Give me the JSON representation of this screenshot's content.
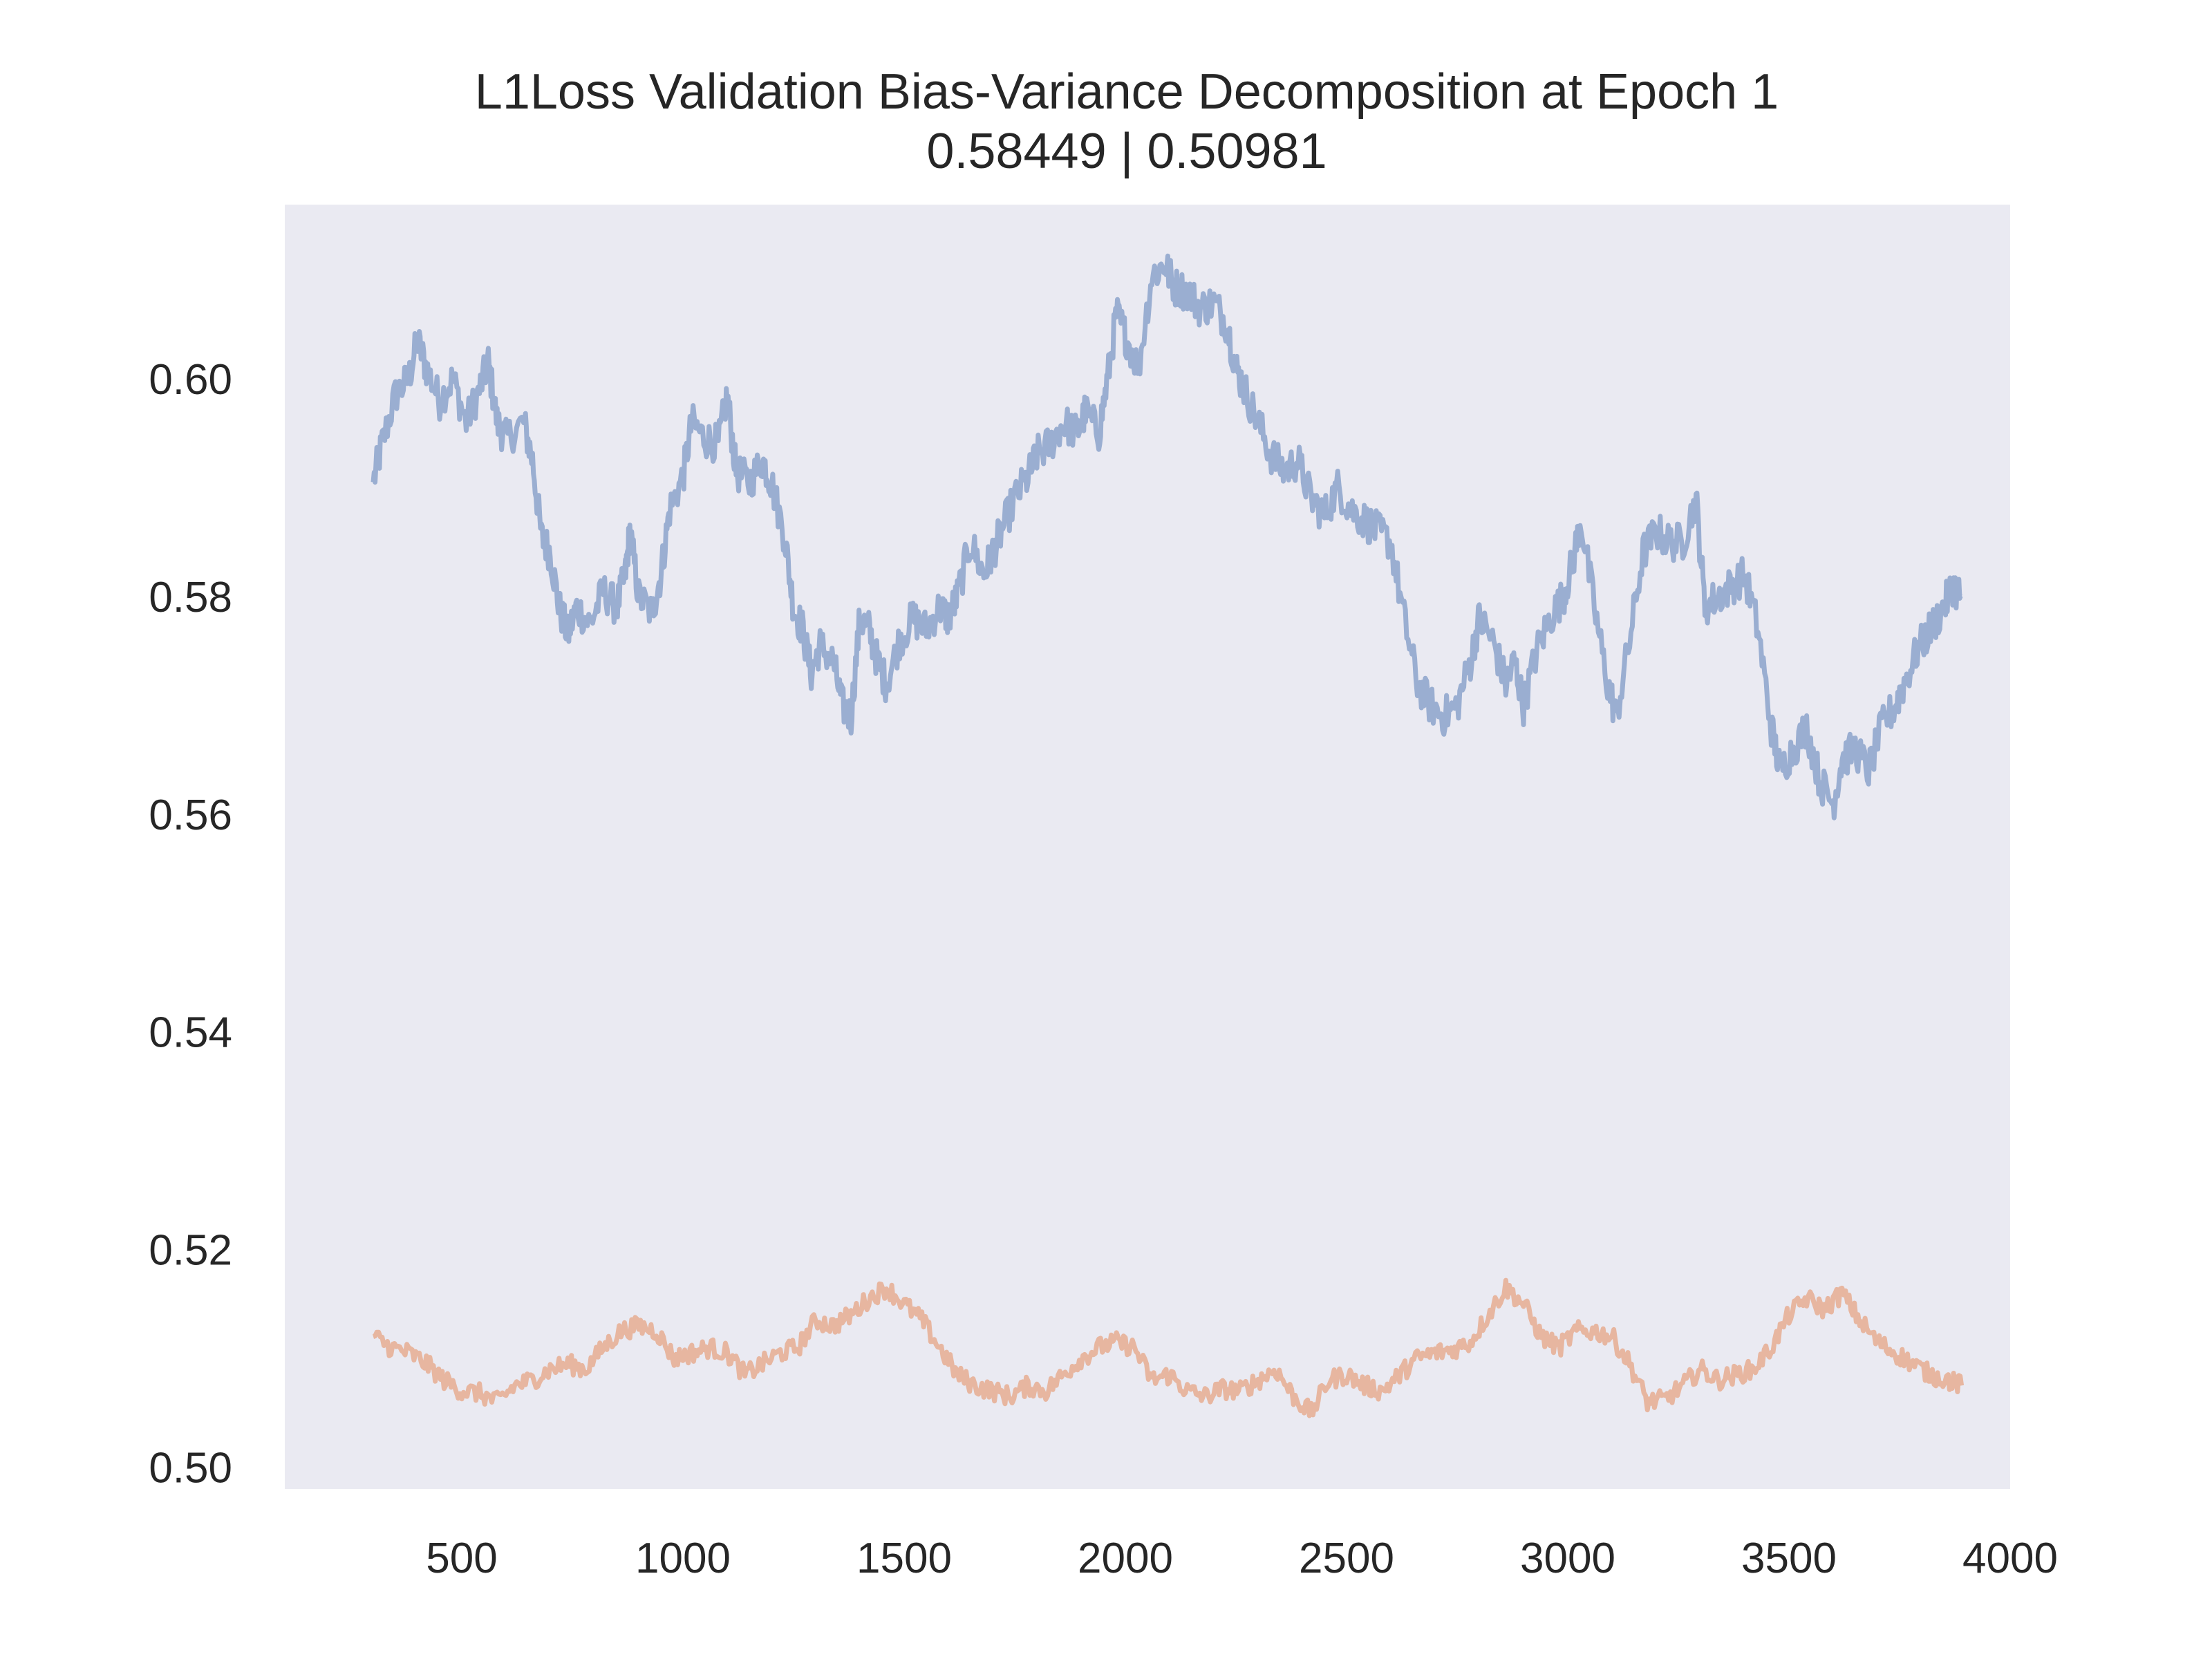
{
  "chart_data": {
    "type": "line",
    "title": "L1Loss Validation Bias-Variance Decomposition at Epoch 1",
    "subtitle": "0.58449 | 0.50981",
    "xlabel": "",
    "ylabel": "",
    "xlim": [
      100,
      4000
    ],
    "ylim": [
      0.498,
      0.616
    ],
    "x_ticks": [
      500,
      1000,
      1500,
      2000,
      2500,
      3000,
      3500,
      4000
    ],
    "x_tick_labels": [
      "500",
      "1000",
      "1500",
      "2000",
      "2500",
      "3000",
      "3500",
      "4000"
    ],
    "y_ticks": [
      0.5,
      0.52,
      0.54,
      0.56,
      0.58,
      0.6
    ],
    "y_tick_labels": [
      "0.50",
      "0.52",
      "0.54",
      "0.56",
      "0.58",
      "0.60"
    ],
    "grid": false,
    "legend": "none",
    "background_color": "#eaeaf2",
    "series": [
      {
        "color": "#9aaed1",
        "points": [
          [
            300,
            0.5905
          ],
          [
            320,
            0.594
          ],
          [
            350,
            0.5985
          ],
          [
            380,
            0.6
          ],
          [
            400,
            0.6035
          ],
          [
            420,
            0.601
          ],
          [
            450,
            0.598
          ],
          [
            480,
            0.6
          ],
          [
            510,
            0.596
          ],
          [
            540,
            0.599
          ],
          [
            560,
            0.6015
          ],
          [
            580,
            0.596
          ],
          [
            600,
            0.5945
          ],
          [
            640,
            0.596
          ],
          [
            660,
            0.5925
          ],
          [
            680,
            0.5855
          ],
          [
            700,
            0.584
          ],
          [
            720,
            0.579
          ],
          [
            740,
            0.5765
          ],
          [
            760,
            0.579
          ],
          [
            790,
            0.5775
          ],
          [
            820,
            0.5805
          ],
          [
            850,
            0.579
          ],
          [
            870,
            0.582
          ],
          [
            880,
            0.586
          ],
          [
            900,
            0.58
          ],
          [
            930,
            0.5785
          ],
          [
            950,
            0.582
          ],
          [
            970,
            0.588
          ],
          [
            1000,
            0.591
          ],
          [
            1020,
            0.596
          ],
          [
            1050,
            0.5945
          ],
          [
            1080,
            0.594
          ],
          [
            1100,
            0.5985
          ],
          [
            1120,
            0.5915
          ],
          [
            1150,
            0.5905
          ],
          [
            1180,
            0.5925
          ],
          [
            1200,
            0.5905
          ],
          [
            1230,
            0.5855
          ],
          [
            1250,
            0.579
          ],
          [
            1270,
            0.577
          ],
          [
            1290,
            0.573
          ],
          [
            1310,
            0.5755
          ],
          [
            1340,
            0.574
          ],
          [
            1360,
            0.57
          ],
          [
            1380,
            0.569
          ],
          [
            1400,
            0.578
          ],
          [
            1420,
            0.577
          ],
          [
            1440,
            0.574
          ],
          [
            1460,
            0.572
          ],
          [
            1490,
            0.576
          ],
          [
            1520,
            0.578
          ],
          [
            1550,
            0.577
          ],
          [
            1580,
            0.579
          ],
          [
            1600,
            0.578
          ],
          [
            1620,
            0.58
          ],
          [
            1650,
            0.585
          ],
          [
            1680,
            0.582
          ],
          [
            1700,
            0.584
          ],
          [
            1720,
            0.586
          ],
          [
            1750,
            0.589
          ],
          [
            1780,
            0.591
          ],
          [
            1800,
            0.593
          ],
          [
            1830,
            0.594
          ],
          [
            1860,
            0.596
          ],
          [
            1890,
            0.595
          ],
          [
            1910,
            0.597
          ],
          [
            1940,
            0.595
          ],
          [
            1960,
            0.6
          ],
          [
            1980,
            0.606
          ],
          [
            2000,
            0.604
          ],
          [
            2030,
            0.601
          ],
          [
            2060,
            0.6095
          ],
          [
            2090,
            0.6105
          ],
          [
            2110,
            0.6085
          ],
          [
            2140,
            0.608
          ],
          [
            2170,
            0.6065
          ],
          [
            2200,
            0.607
          ],
          [
            2230,
            0.605
          ],
          [
            2250,
            0.601
          ],
          [
            2270,
            0.599
          ],
          [
            2300,
            0.596
          ],
          [
            2330,
            0.593
          ],
          [
            2360,
            0.5915
          ],
          [
            2390,
            0.5925
          ],
          [
            2420,
            0.589
          ],
          [
            2450,
            0.5875
          ],
          [
            2480,
            0.59
          ],
          [
            2510,
            0.588
          ],
          [
            2540,
            0.587
          ],
          [
            2570,
            0.586
          ],
          [
            2600,
            0.585
          ],
          [
            2630,
            0.578
          ],
          [
            2660,
            0.572
          ],
          [
            2690,
            0.57
          ],
          [
            2720,
            0.569
          ],
          [
            2750,
            0.57
          ],
          [
            2780,
            0.574
          ],
          [
            2800,
            0.578
          ],
          [
            2830,
            0.576
          ],
          [
            2860,
            0.572
          ],
          [
            2880,
            0.574
          ],
          [
            2900,
            0.57
          ],
          [
            2930,
            0.575
          ],
          [
            2960,
            0.578
          ],
          [
            2990,
            0.58
          ],
          [
            3010,
            0.583
          ],
          [
            3030,
            0.587
          ],
          [
            3060,
            0.579
          ],
          [
            3090,
            0.572
          ],
          [
            3110,
            0.569
          ],
          [
            3140,
            0.576
          ],
          [
            3170,
            0.584
          ],
          [
            3200,
            0.586
          ],
          [
            3230,
            0.585
          ],
          [
            3260,
            0.585
          ],
          [
            3290,
            0.589
          ],
          [
            3310,
            0.579
          ],
          [
            3340,
            0.58
          ],
          [
            3370,
            0.581
          ],
          [
            3400,
            0.582
          ],
          [
            3430,
            0.577
          ],
          [
            3460,
            0.568
          ],
          [
            3480,
            0.564
          ],
          [
            3510,
            0.566
          ],
          [
            3540,
            0.568
          ],
          [
            3570,
            0.563
          ],
          [
            3600,
            0.561
          ],
          [
            3620,
            0.565
          ],
          [
            3650,
            0.566
          ],
          [
            3680,
            0.564
          ],
          [
            3710,
            0.568
          ],
          [
            3740,
            0.57
          ],
          [
            3760,
            0.572
          ],
          [
            3790,
            0.575
          ],
          [
            3820,
            0.577
          ],
          [
            3850,
            0.579
          ],
          [
            3870,
            0.581
          ],
          [
            3890,
            0.58
          ]
        ]
      },
      {
        "color": "#e7b6a0",
        "points": [
          [
            300,
            0.512
          ],
          [
            340,
            0.511
          ],
          [
            380,
            0.5105
          ],
          [
            420,
            0.5095
          ],
          [
            460,
            0.508
          ],
          [
            500,
            0.507
          ],
          [
            540,
            0.5068
          ],
          [
            580,
            0.506
          ],
          [
            620,
            0.5075
          ],
          [
            660,
            0.508
          ],
          [
            700,
            0.509
          ],
          [
            740,
            0.5095
          ],
          [
            780,
            0.509
          ],
          [
            820,
            0.511
          ],
          [
            860,
            0.5125
          ],
          [
            900,
            0.513
          ],
          [
            940,
            0.5125
          ],
          [
            980,
            0.51
          ],
          [
            1020,
            0.5105
          ],
          [
            1060,
            0.511
          ],
          [
            1100,
            0.5105
          ],
          [
            1140,
            0.5085
          ],
          [
            1180,
            0.5095
          ],
          [
            1220,
            0.5105
          ],
          [
            1260,
            0.511
          ],
          [
            1300,
            0.5135
          ],
          [
            1340,
            0.513
          ],
          [
            1380,
            0.514
          ],
          [
            1420,
            0.5155
          ],
          [
            1460,
            0.5165
          ],
          [
            1500,
            0.515
          ],
          [
            1540,
            0.5135
          ],
          [
            1580,
            0.511
          ],
          [
            1620,
            0.5085
          ],
          [
            1660,
            0.5075
          ],
          [
            1700,
            0.507
          ],
          [
            1740,
            0.5065
          ],
          [
            1780,
            0.5075
          ],
          [
            1820,
            0.507
          ],
          [
            1860,
            0.5085
          ],
          [
            1900,
            0.51
          ],
          [
            1940,
            0.511
          ],
          [
            1980,
            0.5115
          ],
          [
            2020,
            0.511
          ],
          [
            2060,
            0.508
          ],
          [
            2100,
            0.5085
          ],
          [
            2140,
            0.507
          ],
          [
            2180,
            0.5065
          ],
          [
            2220,
            0.5072
          ],
          [
            2260,
            0.507
          ],
          [
            2300,
            0.508
          ],
          [
            2340,
            0.509
          ],
          [
            2380,
            0.5065
          ],
          [
            2420,
            0.505
          ],
          [
            2460,
            0.508
          ],
          [
            2500,
            0.5085
          ],
          [
            2540,
            0.5075
          ],
          [
            2580,
            0.507
          ],
          [
            2620,
            0.5085
          ],
          [
            2660,
            0.51
          ],
          [
            2700,
            0.5105
          ],
          [
            2740,
            0.5108
          ],
          [
            2780,
            0.5115
          ],
          [
            2820,
            0.514
          ],
          [
            2860,
            0.5165
          ],
          [
            2900,
            0.515
          ],
          [
            2940,
            0.512
          ],
          [
            2980,
            0.511
          ],
          [
            3020,
            0.5125
          ],
          [
            3060,
            0.5125
          ],
          [
            3100,
            0.512
          ],
          [
            3140,
            0.5095
          ],
          [
            3180,
            0.506
          ],
          [
            3220,
            0.5062
          ],
          [
            3260,
            0.5075
          ],
          [
            3300,
            0.509
          ],
          [
            3340,
            0.508
          ],
          [
            3380,
            0.5085
          ],
          [
            3420,
            0.509
          ],
          [
            3460,
            0.511
          ],
          [
            3500,
            0.514
          ],
          [
            3540,
            0.5155
          ],
          [
            3580,
            0.5145
          ],
          [
            3620,
            0.516
          ],
          [
            3660,
            0.5135
          ],
          [
            3700,
            0.5115
          ],
          [
            3740,
            0.5105
          ],
          [
            3780,
            0.5095
          ],
          [
            3820,
            0.5085
          ],
          [
            3860,
            0.508
          ],
          [
            3890,
            0.5075
          ]
        ]
      }
    ]
  }
}
